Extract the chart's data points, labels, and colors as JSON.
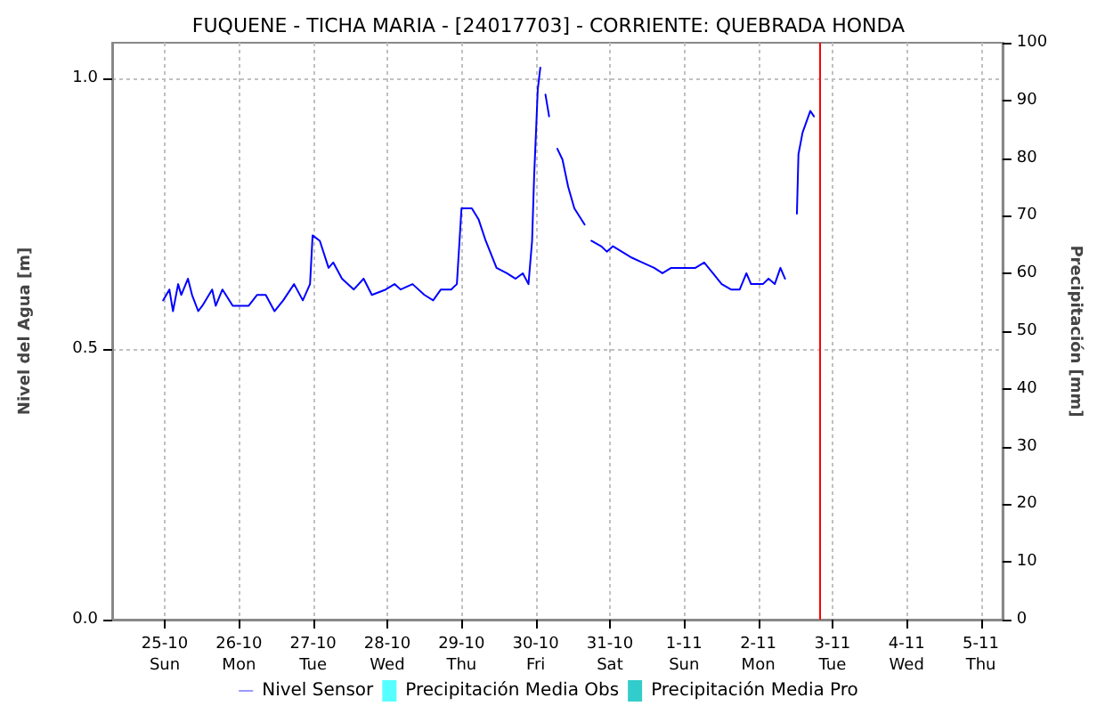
{
  "chart_data": {
    "type": "line",
    "title": "FUQUENE - TICHA MARIA - [24017703] - CORRIENTE: QUEBRADA HONDA",
    "ylabel": "Nivel del Agua [m]",
    "y2label": "Precipitación [mm]",
    "xlim": [
      "--10-24T07:00",
      "--11-05T07:00"
    ],
    "xticks": [
      {
        "value": "--10-25",
        "label": "25-10\nSun"
      },
      {
        "value": "--10-26",
        "label": "26-10\nMon"
      },
      {
        "value": "--10-27",
        "label": "27-10\nTue"
      },
      {
        "value": "--10-28",
        "label": "28-10\nWed"
      },
      {
        "value": "--10-29",
        "label": "29-10\nThu"
      },
      {
        "value": "--10-30",
        "label": "30-10\nFri"
      },
      {
        "value": "--10-31",
        "label": "31-10\nSat"
      },
      {
        "value": "--11-01",
        "label": "1-11\nSun"
      },
      {
        "value": "--11-02",
        "label": "2-11\nMon"
      },
      {
        "value": "--11-03",
        "label": "3-11\nTue"
      },
      {
        "value": "--11-04",
        "label": "4-11\nWed"
      },
      {
        "value": "--11-05",
        "label": "5-11\nThu"
      }
    ],
    "ylim": [
      0,
      1.066
    ],
    "yticks": [
      {
        "value": 0,
        "label": "0.0"
      },
      {
        "value": 0.5,
        "label": "0.5"
      },
      {
        "value": 1,
        "label": "1.0"
      }
    ],
    "y2lim": [
      0,
      100
    ],
    "y2ticks": [
      0,
      10,
      20,
      30,
      40,
      50,
      60,
      70,
      80,
      90,
      100
    ],
    "grid": true,
    "legend": "bottom",
    "marker": "none",
    "line_style": "solid",
    "ref_lines": [
      {
        "axis": "x",
        "value": "--11-02T19:50",
        "color": "#ff0000"
      }
    ],
    "series": [
      {
        "name": "Nivel Sensor",
        "color": "#0000ff",
        "x": [
          "--10-24T23:30",
          "--10-25T01:30",
          "--10-25T02:40",
          "--10-25T04:20",
          "--10-25T05:20",
          "--10-25T07:30",
          "--10-25T08:50",
          "--10-25T10:50",
          "--10-25T12:10",
          "--10-25T15:20",
          "--10-25T16:30",
          "--10-25T18:40",
          "--10-25T22:00",
          "--10-26T00:30",
          "--10-26T03:10",
          "--10-26T05:50",
          "--10-26T08:40",
          "--10-26T11:30",
          "--10-26T14:20",
          "--10-26T17:50",
          "--10-26T20:40",
          "--10-26T23:00",
          "--10-26T23:50",
          "--10-27T02:10",
          "--10-27T05:00",
          "--10-27T06:30",
          "--10-27T09:20",
          "--10-27T13:10",
          "--10-27T16:20",
          "--10-27T19:00",
          "--10-27T23:30",
          "--10-28T02:20",
          "--10-28T04:20",
          "--10-28T08:10",
          "--10-28T12:00",
          "--10-28T14:50",
          "--10-28T17:20",
          "--10-28T20:40",
          "--10-28T22:30",
          "--10-29T00:00",
          "--10-29T03:20",
          "--10-29T05:30",
          "--10-29T07:50",
          "--10-29T11:20",
          "--10-29T14:40",
          "--10-29T17:30",
          "--10-29T19:50",
          "--10-29T21:40",
          "--10-29T22:50",
          "--10-29T23:30",
          "--10-30T00:10",
          "--10-30T00:40",
          "--10-30T01:30",
          "--10-30T02:20",
          "--10-30T03:10",
          "--10-30T04:20",
          "--10-30T05:50",
          "--10-30T07:00",
          "--10-30T08:40",
          "--10-30T10:30",
          "--10-30T12:30",
          "--10-30T15:50",
          "--10-30T16:50",
          "--10-30T18:00",
          "--10-30T21:10",
          "--10-30T23:00",
          "--10-31T01:00",
          "--10-31T03:50",
          "--10-31T06:40",
          "--10-31T10:30",
          "--10-31T14:20",
          "--10-31T17:00",
          "--10-31T19:50",
          "--11-01T00:40",
          "--11-01T03:40",
          "--11-01T06:30",
          "--11-01T09:20",
          "--11-01T12:10",
          "--11-01T15:10",
          "--11-01T18:00",
          "--11-01T20:10",
          "--11-01T21:40",
          "--11-02T01:30",
          "--11-02T03:20",
          "--11-02T05:20",
          "--11-02T07:10",
          "--11-02T08:40",
          "--11-02T10:30",
          "--11-02T12:30",
          "--11-02T13:00",
          "--11-02T14:20",
          "--11-02T16:50",
          "--11-02T18:00"
        ],
        "values": [
          0.59,
          0.61,
          0.57,
          0.62,
          0.6,
          0.63,
          0.6,
          0.57,
          0.58,
          0.61,
          0.58,
          0.61,
          0.58,
          0.58,
          0.58,
          0.6,
          0.6,
          0.57,
          0.59,
          0.62,
          0.59,
          0.62,
          0.71,
          0.7,
          0.65,
          0.66,
          0.63,
          0.61,
          0.63,
          0.6,
          0.61,
          0.62,
          0.61,
          0.62,
          0.6,
          0.59,
          0.61,
          0.61,
          0.62,
          0.76,
          0.76,
          0.74,
          0.7,
          0.65,
          0.64,
          0.63,
          0.64,
          0.62,
          0.7,
          0.82,
          0.91,
          0.98,
          1.02,
          null,
          0.97,
          0.93,
          null,
          0.87,
          0.85,
          0.8,
          0.76,
          0.73,
          null,
          0.7,
          0.69,
          0.68,
          0.69,
          0.68,
          0.67,
          0.66,
          0.65,
          0.64,
          0.65,
          0.65,
          0.65,
          0.66,
          0.64,
          0.62,
          0.61,
          0.61,
          0.64,
          0.62,
          0.62,
          0.63,
          0.62,
          0.65,
          0.63,
          null,
          0.75,
          0.86,
          0.9,
          0.94,
          0.93
        ]
      },
      {
        "name": "Precipitación Media Obs",
        "type": "bar",
        "color": "#55ffff"
      },
      {
        "name": "Precipitación Media Pro",
        "type": "bar",
        "color": "#33cccc"
      }
    ]
  }
}
